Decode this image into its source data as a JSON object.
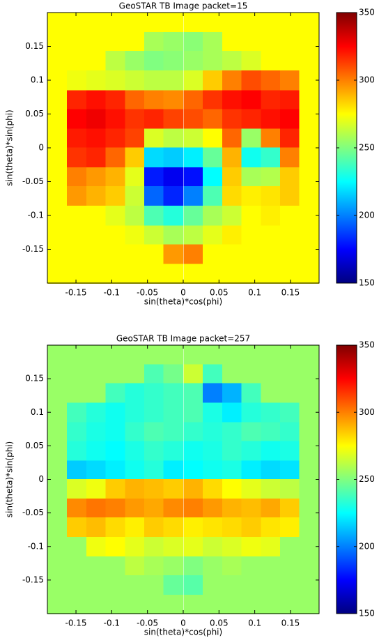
{
  "chart_data": [
    {
      "type": "heatmap",
      "title": "GeoSTAR TB Image packet=15",
      "xlabel": "sin(theta)*cos(phi)",
      "ylabel": "sin(theta)*sin(phi)",
      "x": [
        -0.176,
        -0.149,
        -0.122,
        -0.095,
        -0.068,
        -0.041,
        -0.014,
        0.014,
        0.041,
        0.068,
        0.095,
        0.122,
        0.149,
        0.176
      ],
      "y": [
        0.186,
        0.157,
        0.129,
        0.1,
        0.071,
        0.043,
        0.014,
        -0.014,
        -0.043,
        -0.071,
        -0.1,
        -0.129,
        -0.157,
        -0.186
      ],
      "values": [
        [
          275,
          275,
          275,
          275,
          275,
          275,
          275,
          275,
          275,
          275,
          275,
          275,
          275,
          275
        ],
        [
          275,
          275,
          275,
          275,
          275,
          258,
          255,
          252,
          258,
          275,
          275,
          275,
          275,
          275
        ],
        [
          275,
          275,
          275,
          262,
          255,
          250,
          252,
          255,
          258,
          262,
          268,
          275,
          275,
          275
        ],
        [
          275,
          272,
          270,
          268,
          265,
          262,
          262,
          268,
          285,
          300,
          310,
          305,
          300,
          275
        ],
        [
          275,
          318,
          322,
          318,
          305,
          300,
          298,
          305,
          315,
          322,
          325,
          318,
          320,
          275
        ],
        [
          275,
          325,
          328,
          322,
          315,
          318,
          312,
          310,
          305,
          315,
          318,
          322,
          325,
          275
        ],
        [
          275,
          320,
          322,
          318,
          312,
          268,
          262,
          265,
          275,
          305,
          255,
          300,
          318,
          275
        ],
        [
          275,
          315,
          318,
          305,
          285,
          218,
          215,
          222,
          245,
          290,
          228,
          235,
          300,
          275
        ],
        [
          275,
          300,
          295,
          290,
          270,
          180,
          172,
          178,
          225,
          285,
          258,
          260,
          285,
          275
        ],
        [
          275,
          295,
          290,
          285,
          265,
          195,
          182,
          200,
          240,
          282,
          278,
          280,
          285,
          275
        ],
        [
          275,
          275,
          275,
          270,
          262,
          240,
          232,
          245,
          258,
          265,
          275,
          278,
          275,
          275
        ],
        [
          275,
          275,
          275,
          275,
          272,
          265,
          258,
          262,
          270,
          278,
          275,
          275,
          275,
          275
        ],
        [
          275,
          275,
          275,
          275,
          275,
          275,
          295,
          300,
          275,
          275,
          275,
          275,
          275,
          275
        ],
        [
          275,
          275,
          275,
          275,
          275,
          275,
          275,
          275,
          275,
          275,
          275,
          275,
          275,
          275
        ]
      ],
      "xlim": [
        -0.19,
        0.19
      ],
      "ylim": [
        -0.2,
        0.2
      ],
      "xticks": [
        -0.15,
        -0.1,
        -0.05,
        0,
        0.05,
        0.1,
        0.15
      ],
      "yticks": [
        -0.15,
        -0.1,
        -0.05,
        0,
        0.05,
        0.1,
        0.15
      ],
      "colormap": "jet",
      "clim": [
        150,
        350
      ],
      "cticks": [
        150,
        200,
        250,
        300,
        350
      ]
    },
    {
      "type": "heatmap",
      "title": "GeoSTAR TB Image packet=257",
      "xlabel": "sin(theta)*cos(phi)",
      "ylabel": "sin(theta)*sin(phi)",
      "x": [
        -0.176,
        -0.149,
        -0.122,
        -0.095,
        -0.068,
        -0.041,
        -0.014,
        0.014,
        0.041,
        0.068,
        0.095,
        0.122,
        0.149,
        0.176
      ],
      "y": [
        0.186,
        0.157,
        0.129,
        0.1,
        0.071,
        0.043,
        0.014,
        -0.014,
        -0.043,
        -0.071,
        -0.1,
        -0.129,
        -0.157,
        -0.186
      ],
      "values": [
        [
          255,
          255,
          255,
          255,
          255,
          255,
          255,
          255,
          255,
          255,
          255,
          255,
          255,
          255
        ],
        [
          255,
          255,
          255,
          255,
          255,
          240,
          248,
          265,
          238,
          255,
          255,
          255,
          255,
          255
        ],
        [
          255,
          255,
          255,
          238,
          232,
          235,
          238,
          240,
          200,
          210,
          238,
          255,
          255,
          255
        ],
        [
          255,
          238,
          232,
          228,
          232,
          235,
          238,
          240,
          230,
          222,
          232,
          235,
          238,
          255
        ],
        [
          255,
          235,
          230,
          228,
          235,
          240,
          238,
          235,
          232,
          235,
          240,
          238,
          235,
          255
        ],
        [
          255,
          232,
          228,
          225,
          230,
          235,
          232,
          228,
          230,
          235,
          232,
          228,
          230,
          255
        ],
        [
          255,
          215,
          218,
          222,
          228,
          232,
          222,
          225,
          228,
          230,
          222,
          218,
          220,
          255
        ],
        [
          255,
          268,
          272,
          285,
          290,
          288,
          285,
          290,
          282,
          275,
          270,
          265,
          262,
          255
        ],
        [
          255,
          298,
          302,
          300,
          295,
          292,
          298,
          300,
          295,
          290,
          288,
          292,
          285,
          255
        ],
        [
          255,
          285,
          288,
          282,
          278,
          285,
          282,
          278,
          280,
          282,
          285,
          280,
          278,
          255
        ],
        [
          255,
          255,
          272,
          275,
          270,
          265,
          268,
          270,
          265,
          268,
          272,
          270,
          255,
          255
        ],
        [
          255,
          255,
          255,
          255,
          262,
          258,
          255,
          250,
          255,
          258,
          255,
          255,
          255,
          255
        ],
        [
          255,
          255,
          255,
          255,
          255,
          255,
          245,
          242,
          255,
          255,
          255,
          255,
          255,
          255
        ],
        [
          255,
          255,
          255,
          255,
          255,
          255,
          255,
          255,
          255,
          255,
          255,
          255,
          255,
          255
        ]
      ],
      "xlim": [
        -0.19,
        0.19
      ],
      "ylim": [
        -0.2,
        0.2
      ],
      "xticks": [
        -0.15,
        -0.1,
        -0.05,
        0,
        0.05,
        0.1,
        0.15
      ],
      "yticks": [
        -0.15,
        -0.1,
        -0.05,
        0,
        0.05,
        0.1,
        0.15
      ],
      "colormap": "jet",
      "clim": [
        150,
        350
      ],
      "cticks": [
        150,
        200,
        250,
        300,
        350
      ]
    }
  ]
}
